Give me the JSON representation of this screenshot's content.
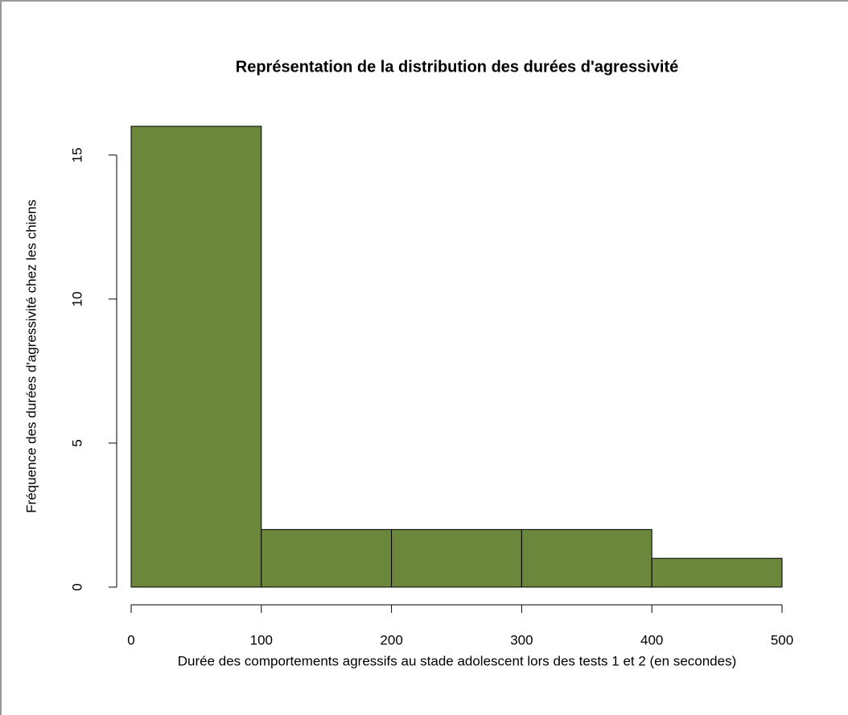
{
  "chart_data": {
    "type": "histogram",
    "title": "Représentation de la distribution des durées d'agressivité",
    "x_label": "Durée des comportements agressifs au stade adolescent lors des tests 1 et 2 (en secondes)",
    "y_label": "Fréquence des durées d'agressivité chez les chiens",
    "bins": [
      0,
      100,
      200,
      300,
      400,
      500
    ],
    "values": [
      16,
      2,
      2,
      2,
      1
    ],
    "color": "#6b873b",
    "xlim": [
      0,
      500
    ],
    "xticks": [
      0,
      100,
      200,
      300,
      400,
      500
    ],
    "ylim": [
      0,
      16
    ],
    "yticks": [
      0,
      5,
      10,
      15
    ]
  }
}
